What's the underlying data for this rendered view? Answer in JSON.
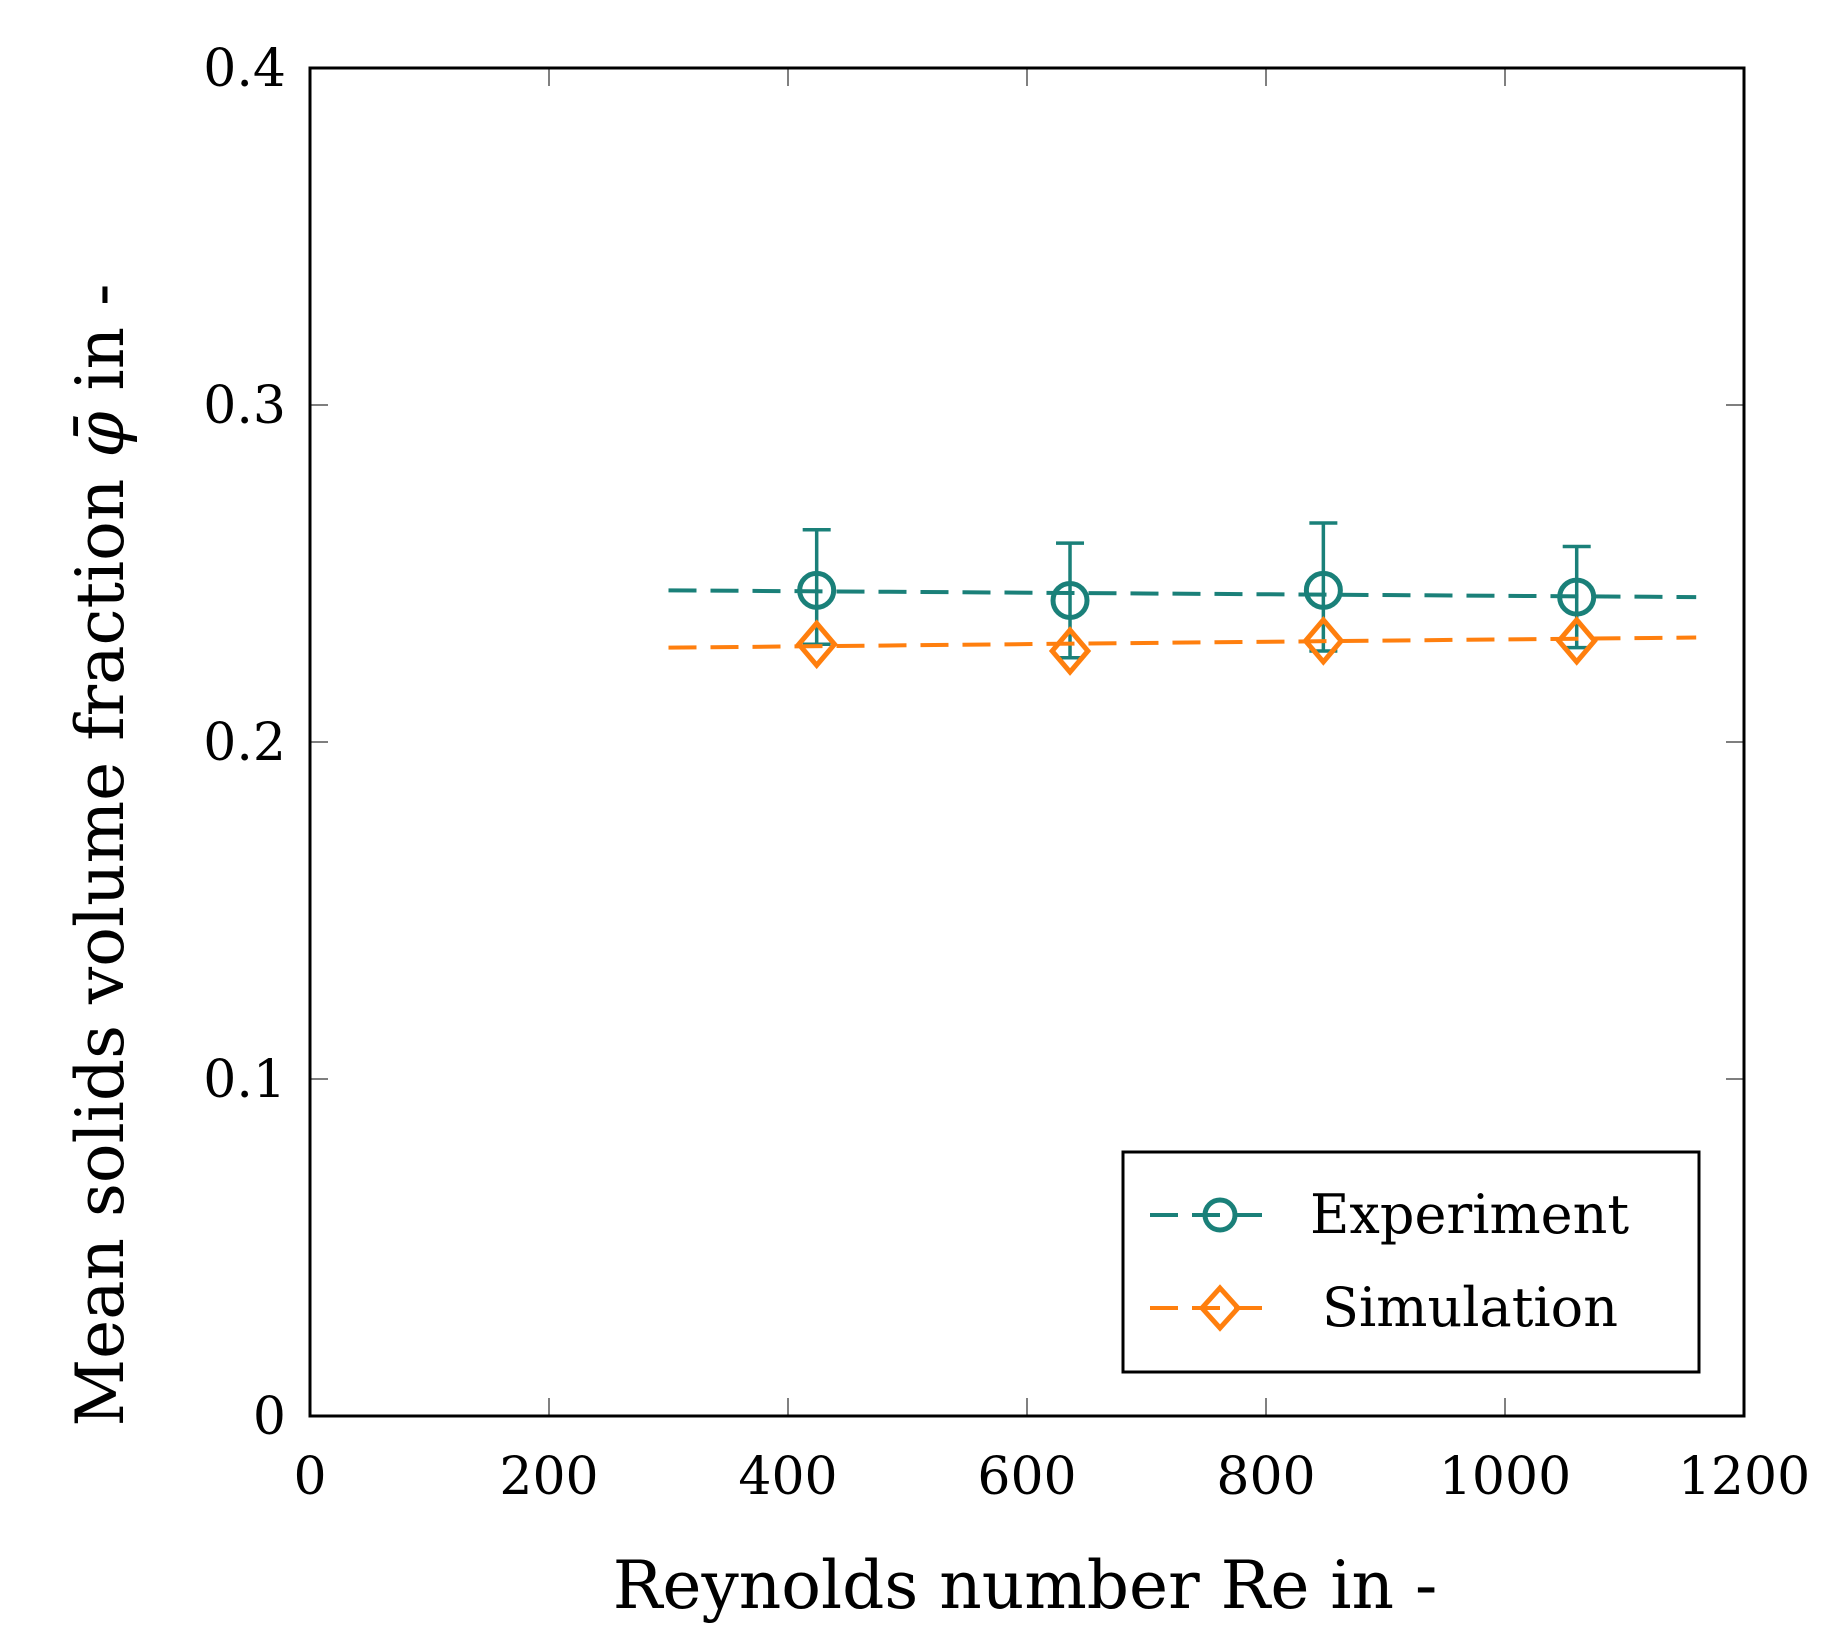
{
  "chart_data": {
    "type": "line",
    "title": "",
    "xlabel": "Reynolds number Re in -",
    "ylabel_prefix": "Mean solids volume fraction ",
    "ylabel_symbol": "φ̄",
    "ylabel_suffix": " in -",
    "xlim": [
      0,
      1200
    ],
    "ylim": [
      0,
      0.4
    ],
    "xticks": [
      0,
      200,
      400,
      600,
      800,
      1000,
      1200
    ],
    "yticks": [
      0,
      0.1,
      0.2,
      0.3,
      0.4
    ],
    "xtick_labels": [
      "0",
      "200",
      "400",
      "600",
      "800",
      "1000",
      "1200"
    ],
    "ytick_labels": [
      "0",
      "0.1",
      "0.2",
      "0.3",
      "0.4"
    ],
    "grid": false,
    "legend_position": "bottom-right",
    "series": [
      {
        "name": "Experiment",
        "color": "#1a8079",
        "marker": "circle",
        "points": [
          {
            "x": 424,
            "y": 0.245,
            "err_low": 0.229,
            "err_high": 0.263
          },
          {
            "x": 636,
            "y": 0.242,
            "err_low": 0.225,
            "err_high": 0.259
          },
          {
            "x": 848,
            "y": 0.245,
            "err_low": 0.227,
            "err_high": 0.265
          },
          {
            "x": 1060,
            "y": 0.243,
            "err_low": 0.228,
            "err_high": 0.258
          }
        ],
        "fit_line": {
          "x": [
            300,
            1160
          ],
          "y": [
            0.245,
            0.243
          ],
          "style": "dashed"
        }
      },
      {
        "name": "Simulation",
        "color": "#ff7f0e",
        "marker": "diamond",
        "points": [
          {
            "x": 424,
            "y": 0.229
          },
          {
            "x": 636,
            "y": 0.227
          },
          {
            "x": 848,
            "y": 0.23
          },
          {
            "x": 1060,
            "y": 0.23
          }
        ],
        "fit_line": {
          "x": [
            300,
            1160
          ],
          "y": [
            0.228,
            0.231
          ],
          "style": "dashed"
        }
      }
    ]
  }
}
